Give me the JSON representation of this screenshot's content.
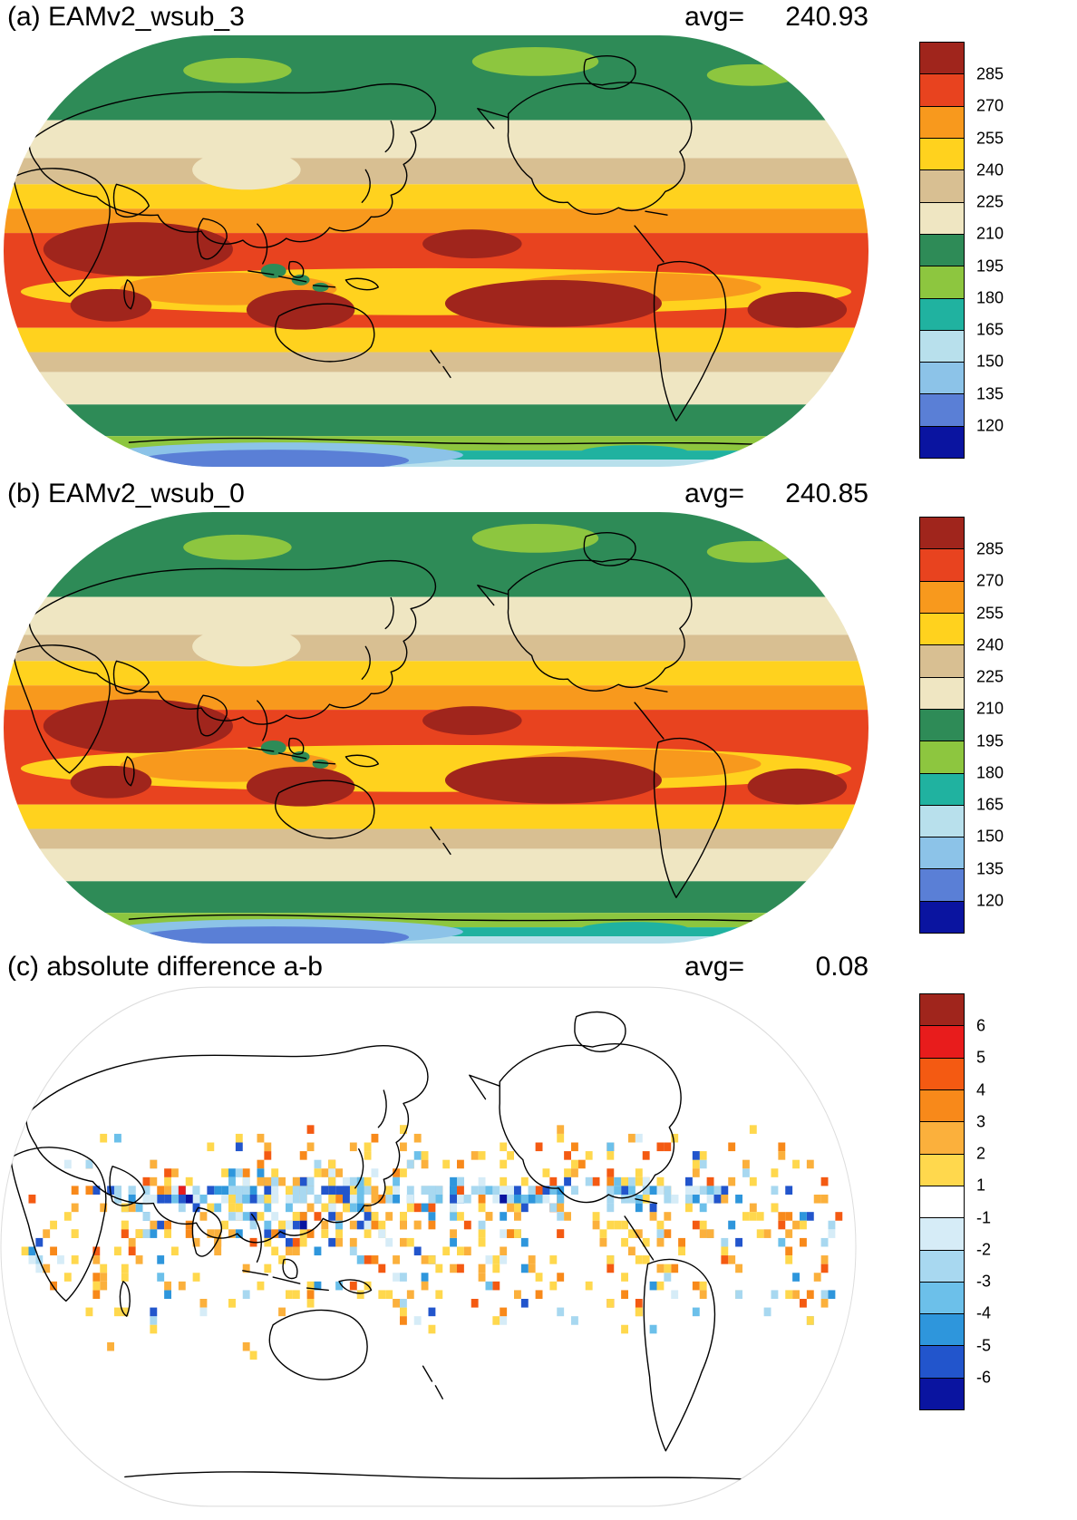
{
  "page": {
    "background": "#ffffff"
  },
  "panels": [
    {
      "id": "a",
      "title": "(a) EAMv2_wsub_3",
      "avg_label": "avg=",
      "avg_value": "240.93",
      "colorbar": {
        "ticks": [
          "285",
          "270",
          "255",
          "240",
          "225",
          "210",
          "195",
          "180",
          "165",
          "150",
          "135",
          "120"
        ],
        "colors": [
          "#a0251c",
          "#e8431f",
          "#f8991d",
          "#ffd21e",
          "#d8bf92",
          "#efe6c2",
          "#2e8b57",
          "#8dc63f",
          "#20b2a0",
          "#b8e0ec",
          "#8cc3e8",
          "#5a7fd6",
          "#0a14a0"
        ]
      }
    },
    {
      "id": "b",
      "title": "(b) EAMv2_wsub_0",
      "avg_label": "avg=",
      "avg_value": "240.85",
      "colorbar": {
        "ticks": [
          "285",
          "270",
          "255",
          "240",
          "225",
          "210",
          "195",
          "180",
          "165",
          "150",
          "135",
          "120"
        ],
        "colors": [
          "#a0251c",
          "#e8431f",
          "#f8991d",
          "#ffd21e",
          "#d8bf92",
          "#efe6c2",
          "#2e8b57",
          "#8dc63f",
          "#20b2a0",
          "#b8e0ec",
          "#8cc3e8",
          "#5a7fd6",
          "#0a14a0"
        ]
      }
    },
    {
      "id": "c",
      "title": "(c) absolute difference a-b",
      "avg_label": "avg=",
      "avg_value": "0.08",
      "colorbar": {
        "ticks": [
          "6",
          "5",
          "4",
          "3",
          "2",
          "1",
          "-1",
          "-2",
          "-3",
          "-4",
          "-5",
          "-6"
        ],
        "colors": [
          "#a0251c",
          "#e81c1c",
          "#f45a12",
          "#f8891a",
          "#fbb03c",
          "#ffd84d",
          "#ffffff",
          "#d6ecf7",
          "#a8d8f0",
          "#6cc0ea",
          "#2e96dc",
          "#2255cc",
          "#0a14a0"
        ]
      }
    }
  ],
  "chart_data": [
    {
      "type": "heatmap",
      "variant": "global-map",
      "title": "(a) EAMv2_wsub_3",
      "stat_label": "avg=",
      "avg": 240.93,
      "levels": [
        120,
        135,
        150,
        165,
        180,
        195,
        210,
        225,
        240,
        255,
        270,
        285
      ],
      "palette_top_to_bottom": [
        "#a0251c",
        "#e8431f",
        "#f8991d",
        "#ffd21e",
        "#d8bf92",
        "#efe6c2",
        "#2e8b57",
        "#8dc63f",
        "#20b2a0",
        "#b8e0ec",
        "#8cc3e8",
        "#5a7fd6",
        "#0a14a0"
      ],
      "legend_position": "right"
    },
    {
      "type": "heatmap",
      "variant": "global-map",
      "title": "(b) EAMv2_wsub_0",
      "stat_label": "avg=",
      "avg": 240.85,
      "levels": [
        120,
        135,
        150,
        165,
        180,
        195,
        210,
        225,
        240,
        255,
        270,
        285
      ],
      "palette_top_to_bottom": [
        "#a0251c",
        "#e8431f",
        "#f8991d",
        "#ffd21e",
        "#d8bf92",
        "#efe6c2",
        "#2e8b57",
        "#8dc63f",
        "#20b2a0",
        "#b8e0ec",
        "#8cc3e8",
        "#5a7fd6",
        "#0a14a0"
      ],
      "legend_position": "right"
    },
    {
      "type": "heatmap",
      "variant": "global-map-difference",
      "title": "(c) absolute difference a-b",
      "stat_label": "avg=",
      "avg": 0.08,
      "levels": [
        -6,
        -5,
        -4,
        -3,
        -2,
        -1,
        1,
        2,
        3,
        4,
        5,
        6
      ],
      "palette_top_to_bottom": [
        "#a0251c",
        "#e81c1c",
        "#f45a12",
        "#f8891a",
        "#fbb03c",
        "#ffd84d",
        "#ffffff",
        "#d6ecf7",
        "#a8d8f0",
        "#6cc0ea",
        "#2e96dc",
        "#2255cc",
        "#0a14a0"
      ],
      "legend_position": "right"
    }
  ]
}
